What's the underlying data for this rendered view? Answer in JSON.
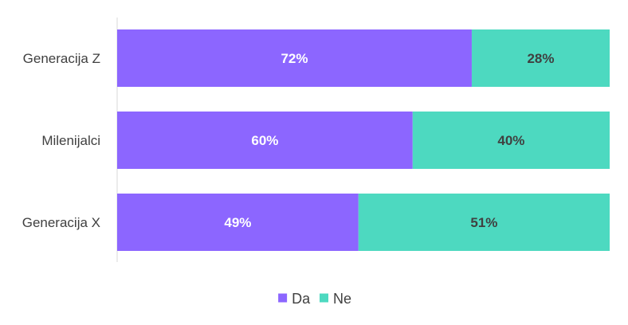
{
  "chart_data": {
    "type": "bar",
    "orientation": "horizontal",
    "stacked": "percent",
    "categories": [
      "Generacija Z",
      "Milenijalci",
      "Generacija X"
    ],
    "series": [
      {
        "name": "Da",
        "values": [
          72,
          60,
          49
        ],
        "labels": [
          "72%",
          "60%",
          "49%"
        ],
        "color": "#8C66FF",
        "label_color": "#FFFFFF"
      },
      {
        "name": "Ne",
        "values": [
          28,
          40,
          51
        ],
        "labels": [
          "28%",
          "40%",
          "51%"
        ],
        "color": "#4DD9C0",
        "label_color": "#404040"
      }
    ],
    "xlim": [
      0,
      100
    ],
    "grid": false,
    "legend": "bottom"
  }
}
